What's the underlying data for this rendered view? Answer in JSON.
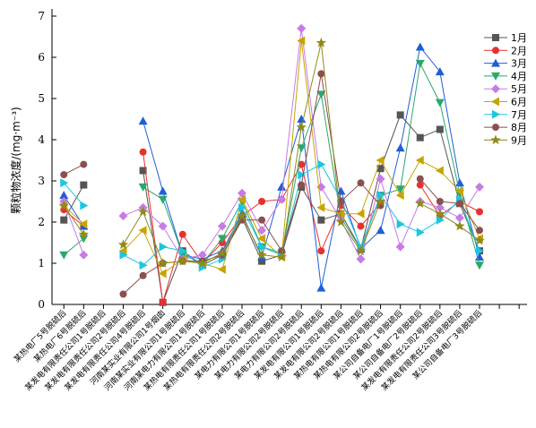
{
  "chart_data": {
    "type": "line",
    "title": "",
    "xlabel": "",
    "ylabel": "颗粒物浓度/(mg·m⁻³)",
    "ylim": [
      0,
      7
    ],
    "yticks": [
      "0",
      "1",
      "2",
      "3",
      "4",
      "5",
      "6",
      "7"
    ],
    "grid": false,
    "legend_position": "top-right",
    "categories": [
      "某热电厂5号脱硫后",
      "某热电厂6号脱硫后",
      "某发电有限责任公司1号脱硫后",
      "某发电有限责任公司2号脱硫后",
      "某发电有限责任公司4号脱硫后",
      "河南某实业有限公司1号烟囱",
      "河南某实业有限公司1号脱硫后",
      "河南某电力有限公司1号脱硫后",
      "某热电有限责任公司1号脱硫后",
      "某热电有限责任公司2号脱硫后",
      "某电力有限公司1号脱硫后",
      "某电力有限公司2号脱硫后",
      "某电力有限公司2号脱硫后",
      "某发电有限公司1号脱硫后",
      "某发电有限公司2号脱硫后",
      "某热电有限公司1号脱硫后",
      "某热电有限公司2号脱硫后",
      "某公司自备电厂1号脱硫后",
      "某公司自备电厂2号脱硫后",
      "某发电有限责任公司2号脱硫后",
      "某发电有限责任公司3号脱硫后",
      "某公司自备电厂3号脱硫后"
    ],
    "series": [
      {
        "name": "1月",
        "color": "#555555",
        "marker": "square",
        "values": [
          2.05,
          2.9,
          null,
          null,
          3.25,
          0.05,
          1.3,
          0.95,
          1.2,
          2.1,
          1.05,
          1.2,
          2.85,
          2.05,
          2.2,
          1.35,
          3.3,
          4.6,
          4.05,
          4.25,
          2.45,
          1.3
        ]
      },
      {
        "name": "2月",
        "color": "#e8312f",
        "marker": "circle",
        "values": [
          2.3,
          1.9,
          null,
          null,
          3.7,
          0.05,
          1.7,
          1.0,
          1.5,
          2.15,
          2.5,
          2.55,
          3.4,
          1.3,
          2.4,
          1.9,
          2.45,
          null,
          2.9,
          2.15,
          2.5,
          2.25
        ]
      },
      {
        "name": "3月",
        "color": "#1f5fd6",
        "marker": "triangle-up",
        "values": [
          2.65,
          1.9,
          null,
          null,
          4.45,
          2.75,
          1.2,
          1.1,
          1.3,
          2.2,
          1.15,
          2.85,
          4.5,
          0.4,
          2.75,
          1.35,
          1.8,
          3.8,
          6.25,
          5.65,
          2.95,
          1.15
        ]
      },
      {
        "name": "4月",
        "color": "#2aa86e",
        "marker": "triangle-down",
        "values": [
          1.2,
          1.6,
          null,
          null,
          2.85,
          2.55,
          1.2,
          1.0,
          1.6,
          2.5,
          1.4,
          1.2,
          3.8,
          5.1,
          2.1,
          1.35,
          2.65,
          2.8,
          5.85,
          4.9,
          2.7,
          0.95
        ]
      },
      {
        "name": "5月",
        "color": "#c77be4",
        "marker": "diamond",
        "values": [
          2.5,
          1.2,
          null,
          2.15,
          2.35,
          1.9,
          1.1,
          1.2,
          1.9,
          2.7,
          1.8,
          2.55,
          6.7,
          2.85,
          2.05,
          1.1,
          3.05,
          1.4,
          2.5,
          2.35,
          2.1,
          2.85
        ]
      },
      {
        "name": "6月",
        "color": "#c8a400",
        "marker": "triangle-left",
        "values": [
          2.4,
          1.95,
          null,
          1.3,
          1.8,
          0.75,
          1.1,
          1.0,
          0.85,
          2.55,
          1.6,
          1.15,
          6.4,
          2.35,
          2.2,
          2.2,
          3.5,
          2.65,
          3.5,
          3.25,
          2.75,
          1.6
        ]
      },
      {
        "name": "7月",
        "color": "#1cc6e0",
        "marker": "triangle-right",
        "values": [
          2.95,
          2.4,
          null,
          1.2,
          0.95,
          1.4,
          1.3,
          0.9,
          1.1,
          2.35,
          1.4,
          1.25,
          3.15,
          3.4,
          2.55,
          1.4,
          2.65,
          1.95,
          1.75,
          2.05,
          2.55,
          1.3
        ]
      },
      {
        "name": "8月",
        "color": "#8b4f4f",
        "marker": "circle",
        "values": [
          3.15,
          3.4,
          null,
          0.25,
          0.7,
          1.0,
          1.05,
          1.05,
          1.2,
          2.05,
          2.05,
          1.3,
          2.9,
          5.6,
          2.5,
          2.95,
          2.4,
          null,
          3.05,
          2.5,
          2.45,
          1.8
        ]
      },
      {
        "name": "9月",
        "color": "#8f8a1c",
        "marker": "star",
        "values": [
          2.4,
          1.7,
          null,
          1.45,
          2.25,
          1.0,
          1.05,
          1.0,
          1.25,
          2.15,
          1.2,
          1.15,
          4.3,
          6.35,
          2.0,
          1.3,
          2.5,
          null,
          2.45,
          2.2,
          1.9,
          1.55
        ]
      }
    ]
  }
}
